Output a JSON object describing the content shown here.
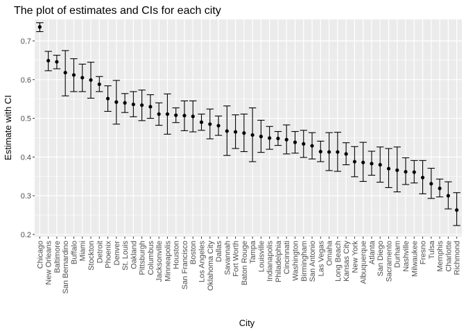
{
  "chart_data": {
    "type": "scatter",
    "subtype": "point-with-errorbars",
    "title": "The plot of estimates and CIs for each city",
    "xlabel": "City",
    "ylabel": "Estimate with CI",
    "ylim": [
      0.2,
      0.75
    ],
    "yticks": [
      0.2,
      0.3,
      0.4,
      0.5,
      0.6,
      0.7
    ],
    "ytick_labels": [
      "0.2",
      "0.3",
      "0.4",
      "0.5",
      "0.6",
      "0.7"
    ],
    "grid": true,
    "legend": "none",
    "colors": {
      "panel": "#ebebeb",
      "grid": "#ffffff",
      "point": "#000000"
    },
    "points": [
      {
        "city": "Chicago",
        "estimate": 0.736,
        "lower": 0.724,
        "upper": 0.747
      },
      {
        "city": "New Orleans",
        "estimate": 0.649,
        "lower": 0.623,
        "upper": 0.673
      },
      {
        "city": "Baltimore",
        "estimate": 0.646,
        "lower": 0.628,
        "upper": 0.663
      },
      {
        "city": "San Bernardino",
        "estimate": 0.618,
        "lower": 0.558,
        "upper": 0.675
      },
      {
        "city": "Buffalo",
        "estimate": 0.612,
        "lower": 0.569,
        "upper": 0.654
      },
      {
        "city": "Miami",
        "estimate": 0.605,
        "lower": 0.569,
        "upper": 0.64
      },
      {
        "city": "Stockton",
        "estimate": 0.599,
        "lower": 0.552,
        "upper": 0.645
      },
      {
        "city": "Detroit",
        "estimate": 0.588,
        "lower": 0.569,
        "upper": 0.608
      },
      {
        "city": "Phoenix",
        "estimate": 0.551,
        "lower": 0.518,
        "upper": 0.584
      },
      {
        "city": "Denver",
        "estimate": 0.542,
        "lower": 0.485,
        "upper": 0.598
      },
      {
        "city": "St. Louis",
        "estimate": 0.54,
        "lower": 0.515,
        "upper": 0.564
      },
      {
        "city": "Oakland",
        "estimate": 0.536,
        "lower": 0.504,
        "upper": 0.569
      },
      {
        "city": "Pittsburgh",
        "estimate": 0.534,
        "lower": 0.494,
        "upper": 0.573
      },
      {
        "city": "Columbus",
        "estimate": 0.53,
        "lower": 0.5,
        "upper": 0.561
      },
      {
        "city": "Jacksonville",
        "estimate": 0.511,
        "lower": 0.482,
        "upper": 0.54
      },
      {
        "city": "Minneapolis",
        "estimate": 0.511,
        "lower": 0.459,
        "upper": 0.563
      },
      {
        "city": "Houston",
        "estimate": 0.508,
        "lower": 0.489,
        "upper": 0.527
      },
      {
        "city": "San Francisco",
        "estimate": 0.507,
        "lower": 0.468,
        "upper": 0.545
      },
      {
        "city": "Boston",
        "estimate": 0.505,
        "lower": 0.465,
        "upper": 0.545
      },
      {
        "city": "Los Angeles",
        "estimate": 0.49,
        "lower": 0.469,
        "upper": 0.511
      },
      {
        "city": "Oklahoma City",
        "estimate": 0.485,
        "lower": 0.447,
        "upper": 0.524
      },
      {
        "city": "Dallas",
        "estimate": 0.481,
        "lower": 0.456,
        "upper": 0.506
      },
      {
        "city": "Savannah",
        "estimate": 0.467,
        "lower": 0.404,
        "upper": 0.532
      },
      {
        "city": "Fort Worth",
        "estimate": 0.465,
        "lower": 0.422,
        "upper": 0.509
      },
      {
        "city": "Baton Rouge",
        "estimate": 0.462,
        "lower": 0.414,
        "upper": 0.511
      },
      {
        "city": "Tampa",
        "estimate": 0.457,
        "lower": 0.388,
        "upper": 0.527
      },
      {
        "city": "Louisville",
        "estimate": 0.453,
        "lower": 0.412,
        "upper": 0.495
      },
      {
        "city": "Indianapolis",
        "estimate": 0.449,
        "lower": 0.42,
        "upper": 0.479
      },
      {
        "city": "Philadelphia",
        "estimate": 0.448,
        "lower": 0.43,
        "upper": 0.466
      },
      {
        "city": "Cincinnati",
        "estimate": 0.445,
        "lower": 0.408,
        "upper": 0.483
      },
      {
        "city": "Washington",
        "estimate": 0.438,
        "lower": 0.41,
        "upper": 0.466
      },
      {
        "city": "Birmingham",
        "estimate": 0.434,
        "lower": 0.399,
        "upper": 0.469
      },
      {
        "city": "San Antonio",
        "estimate": 0.429,
        "lower": 0.395,
        "upper": 0.463
      },
      {
        "city": "Las Vegas",
        "estimate": 0.414,
        "lower": 0.388,
        "upper": 0.441
      },
      {
        "city": "Omaha",
        "estimate": 0.413,
        "lower": 0.365,
        "upper": 0.463
      },
      {
        "city": "Long Beach",
        "estimate": 0.413,
        "lower": 0.363,
        "upper": 0.464
      },
      {
        "city": "Kansas City",
        "estimate": 0.408,
        "lower": 0.38,
        "upper": 0.437
      },
      {
        "city": "New York",
        "estimate": 0.388,
        "lower": 0.349,
        "upper": 0.427
      },
      {
        "city": "Albuquerque",
        "estimate": 0.386,
        "lower": 0.337,
        "upper": 0.438
      },
      {
        "city": "Atlanta",
        "estimate": 0.383,
        "lower": 0.353,
        "upper": 0.415
      },
      {
        "city": "San Diego",
        "estimate": 0.38,
        "lower": 0.335,
        "upper": 0.426
      },
      {
        "city": "Sacramento",
        "estimate": 0.37,
        "lower": 0.321,
        "upper": 0.422
      },
      {
        "city": "Durham",
        "estimate": 0.366,
        "lower": 0.31,
        "upper": 0.426
      },
      {
        "city": "Nashville",
        "estimate": 0.362,
        "lower": 0.329,
        "upper": 0.398
      },
      {
        "city": "Milwaukee",
        "estimate": 0.361,
        "lower": 0.333,
        "upper": 0.391
      },
      {
        "city": "Fresno",
        "estimate": 0.347,
        "lower": 0.305,
        "upper": 0.391
      },
      {
        "city": "Tulsa",
        "estimate": 0.331,
        "lower": 0.293,
        "upper": 0.371
      },
      {
        "city": "Memphis",
        "estimate": 0.319,
        "lower": 0.297,
        "upper": 0.343
      },
      {
        "city": "Charlotte",
        "estimate": 0.3,
        "lower": 0.266,
        "upper": 0.336
      },
      {
        "city": "Richmond",
        "estimate": 0.263,
        "lower": 0.223,
        "upper": 0.308
      }
    ]
  }
}
